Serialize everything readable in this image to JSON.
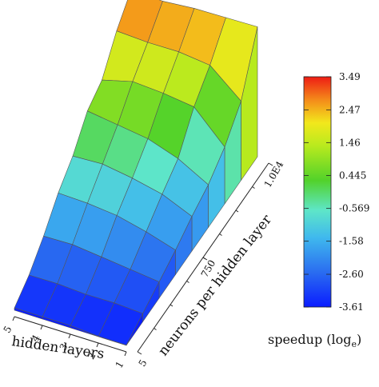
{
  "chart_data": {
    "type": "surface3d",
    "x_axis": {
      "label": "hidden layers",
      "ticks": [
        "5",
        "4",
        "3",
        "2",
        "1"
      ]
    },
    "y_axis": {
      "label": "neurons per hidden layer",
      "ticks": [
        "5",
        "750",
        "1.0E4"
      ]
    },
    "z": {
      "label": "speedup (log",
      "label_sub": "e",
      "label_close": ")",
      "range": [
        -3.61,
        3.49
      ]
    },
    "colorbar": {
      "ticks": [
        "3.49",
        "2.47",
        "1.46",
        "0.445",
        "-0.569",
        "-1.58",
        "-2.60",
        "-3.61"
      ],
      "tick_values": [
        3.49,
        2.47,
        1.46,
        0.445,
        -0.569,
        -1.58,
        -2.6,
        -3.61
      ]
    },
    "surface": {
      "rows_neurons": 9,
      "cols_layers": 5,
      "speedup": [
        [
          -3.5,
          -3.5,
          -3.5,
          -3.6,
          -3.6
        ],
        [
          -3.0,
          -3.0,
          -3.1,
          -3.1,
          -3.2
        ],
        [
          -2.2,
          -2.2,
          -2.4,
          -2.6,
          -2.8
        ],
        [
          -1.2,
          -1.3,
          -1.5,
          -1.9,
          -2.4
        ],
        [
          -0.5,
          -0.5,
          -0.8,
          -1.2,
          -1.9
        ],
        [
          0.6,
          0.3,
          0.0,
          -0.6,
          -1.5
        ],
        [
          1.0,
          1.3,
          1.1,
          0.8,
          -0.8
        ],
        [
          2.3,
          2.1,
          2.0,
          1.7,
          0.3
        ],
        [
          3.2,
          3.0,
          3.0,
          2.9,
          2.8
        ]
      ]
    }
  }
}
